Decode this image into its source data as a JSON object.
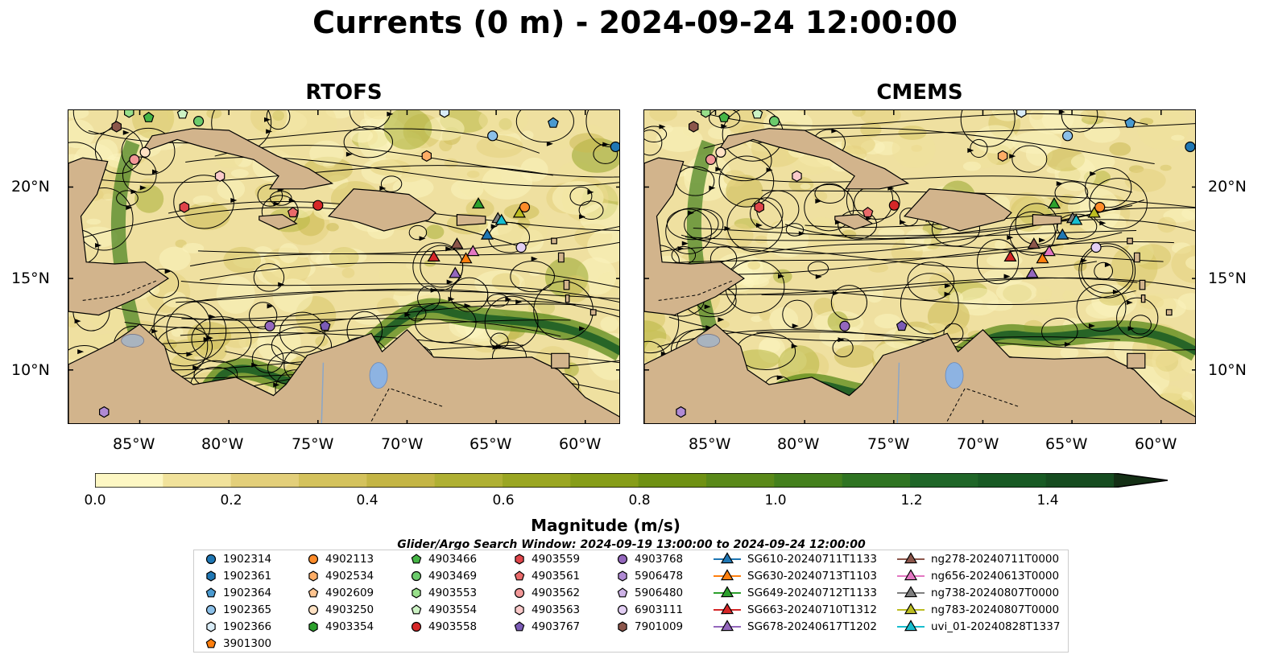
{
  "title": "Currents (0 m) - 2024-09-24 12:00:00",
  "panels": [
    {
      "title": "RTOFS"
    },
    {
      "title": "CMEMS"
    }
  ],
  "axes": {
    "y_ticks": [
      "20°N",
      "15°N",
      "10°N"
    ],
    "x_ticks": [
      "85°W",
      "80°W",
      "75°W",
      "70°W",
      "65°W",
      "60°W"
    ],
    "lon_range": [
      -89,
      -58
    ],
    "lat_range": [
      7,
      24.2
    ]
  },
  "colorbar": {
    "ticks": [
      "0.0",
      "0.2",
      "0.4",
      "0.6",
      "0.8",
      "1.0",
      "1.2",
      "1.4"
    ],
    "label": "Magnitude (m/s)",
    "range": [
      0,
      1.5
    ],
    "extend": "max",
    "colors": [
      "#fdf7c3",
      "#f1e29b",
      "#e3cf7a",
      "#d4c25c",
      "#c4b545",
      "#afb033",
      "#9aa622",
      "#869d18",
      "#6f9113",
      "#5a8919",
      "#44801d",
      "#2f7422",
      "#1f6628",
      "#185a24",
      "#164c20",
      "#16401c",
      "#142f15"
    ]
  },
  "search_window": "Glider/Argo Search Window: 2024-09-19 13:00:00 to 2024-09-24 12:00:00",
  "colors": {
    "land": "#d2b48c",
    "water_lakes": "#8db3e2",
    "ocean_base": "#efe0a0"
  },
  "legend": [
    {
      "label": "1902314",
      "marker": "circle",
      "color": "#1f77b4"
    },
    {
      "label": "1902361",
      "marker": "hexagon",
      "color": "#1f77b4"
    },
    {
      "label": "1902364",
      "marker": "pentagon",
      "color": "#4a9ad0"
    },
    {
      "label": "1902365",
      "marker": "circle",
      "color": "#8cc0e8"
    },
    {
      "label": "1902366",
      "marker": "hexagon",
      "color": "#d9ecf7"
    },
    {
      "label": "3901300",
      "marker": "pentagon",
      "color": "#ff7f0e"
    },
    {
      "label": "4902113",
      "marker": "circle",
      "color": "#ff8c2a"
    },
    {
      "label": "4902534",
      "marker": "hexagon",
      "color": "#ffad66"
    },
    {
      "label": "4902609",
      "marker": "pentagon",
      "color": "#ffc48f"
    },
    {
      "label": "4903250",
      "marker": "circle",
      "color": "#ffe2c4"
    },
    {
      "label": "4903354",
      "marker": "hexagon",
      "color": "#2ca02c"
    },
    {
      "label": "4903466",
      "marker": "pentagon",
      "color": "#46b546"
    },
    {
      "label": "4903469",
      "marker": "circle",
      "color": "#6ccb6c"
    },
    {
      "label": "4903553",
      "marker": "hexagon",
      "color": "#98df8a"
    },
    {
      "label": "4903554",
      "marker": "pentagon",
      "color": "#ccf2c4"
    },
    {
      "label": "4903558",
      "marker": "circle",
      "color": "#d62728"
    },
    {
      "label": "4903559",
      "marker": "hexagon",
      "color": "#e0454a"
    },
    {
      "label": "4903561",
      "marker": "pentagon",
      "color": "#ea6a6a"
    },
    {
      "label": "4903562",
      "marker": "circle",
      "color": "#f29898"
    },
    {
      "label": "4903563",
      "marker": "hexagon",
      "color": "#fbcaca"
    },
    {
      "label": "4903767",
      "marker": "pentagon",
      "color": "#7b5bb6"
    },
    {
      "label": "4903768",
      "marker": "circle",
      "color": "#9467bd"
    },
    {
      "label": "5906478",
      "marker": "hexagon",
      "color": "#b08ad4"
    },
    {
      "label": "5906480",
      "marker": "pentagon",
      "color": "#cdb2e6"
    },
    {
      "label": "6903111",
      "marker": "circle",
      "color": "#e3cff4"
    },
    {
      "label": "7901009",
      "marker": "hexagon",
      "color": "#8c564b"
    },
    {
      "label": "SG610-20240711T1133",
      "marker": "triangle",
      "color": "#1f77b4"
    },
    {
      "label": "SG630-20240713T1103",
      "marker": "triangle",
      "color": "#ff7f0e"
    },
    {
      "label": "SG649-20240712T1133",
      "marker": "triangle",
      "color": "#2ca02c"
    },
    {
      "label": "SG663-20240710T1312",
      "marker": "triangle",
      "color": "#d62728"
    },
    {
      "label": "SG678-20240617T1202",
      "marker": "triangle",
      "color": "#9467bd"
    },
    {
      "label": "ng278-20240711T0000",
      "marker": "triangle",
      "color": "#8c564b"
    },
    {
      "label": "ng656-20240613T0000",
      "marker": "triangle",
      "color": "#e377c2"
    },
    {
      "label": "ng738-20240807T0000",
      "marker": "triangle",
      "color": "#7f7f7f"
    },
    {
      "label": "ng783-20240807T0000",
      "marker": "triangle",
      "color": "#bcbd22"
    },
    {
      "label": "uvi_01-20240828T1337",
      "marker": "triangle",
      "color": "#17becf"
    }
  ],
  "markers_on_map": [
    {
      "id": "1902314",
      "lon": -58.3,
      "lat": 22.2
    },
    {
      "id": "1902364",
      "lon": -61.8,
      "lat": 23.5
    },
    {
      "id": "1902365",
      "lon": -65.2,
      "lat": 22.8
    },
    {
      "id": "1902366",
      "lon": -67.9,
      "lat": 24.1
    },
    {
      "id": "4902534",
      "lon": -68.9,
      "lat": 21.7
    },
    {
      "id": "4903250",
      "lon": -84.7,
      "lat": 21.9
    },
    {
      "id": "4902113",
      "lon": -63.4,
      "lat": 18.9
    },
    {
      "id": "4903466",
      "lon": -84.5,
      "lat": 23.8
    },
    {
      "id": "4903469",
      "lon": -81.7,
      "lat": 23.6
    },
    {
      "id": "4903553",
      "lon": -85.6,
      "lat": 24.1
    },
    {
      "id": "4903554",
      "lon": -82.6,
      "lat": 24.0
    },
    {
      "id": "4903558",
      "lon": -75.0,
      "lat": 19.0
    },
    {
      "id": "4903559",
      "lon": -82.5,
      "lat": 18.9
    },
    {
      "id": "4903561",
      "lon": -76.4,
      "lat": 18.6
    },
    {
      "id": "4903562",
      "lon": -85.3,
      "lat": 21.5
    },
    {
      "id": "4903563",
      "lon": -80.5,
      "lat": 20.6
    },
    {
      "id": "4903767",
      "lon": -74.6,
      "lat": 12.4
    },
    {
      "id": "4903768",
      "lon": -77.7,
      "lat": 12.4
    },
    {
      "id": "5906478",
      "lon": -87.0,
      "lat": 7.7
    },
    {
      "id": "6903111",
      "lon": -63.6,
      "lat": 16.7
    },
    {
      "id": "7901009",
      "lon": -86.3,
      "lat": 23.3
    },
    {
      "id": "SG610-20240711T1133",
      "lon": -65.5,
      "lat": 17.4
    },
    {
      "id": "SG630-20240713T1103",
      "lon": -66.7,
      "lat": 16.1
    },
    {
      "id": "SG649-20240712T1133",
      "lon": -66.0,
      "lat": 19.1
    },
    {
      "id": "SG663-20240710T1312",
      "lon": -68.5,
      "lat": 16.2
    },
    {
      "id": "SG678-20240617T1202",
      "lon": -67.3,
      "lat": 15.3
    },
    {
      "id": "ng278-20240711T0000",
      "lon": -67.2,
      "lat": 16.9
    },
    {
      "id": "ng656-20240613T0000",
      "lon": -66.3,
      "lat": 16.5
    },
    {
      "id": "ng738-20240807T0000",
      "lon": -64.9,
      "lat": 18.3
    },
    {
      "id": "ng783-20240807T0000",
      "lon": -63.7,
      "lat": 18.6
    },
    {
      "id": "uvi_01-20240828T1337",
      "lon": -64.7,
      "lat": 18.2
    }
  ]
}
